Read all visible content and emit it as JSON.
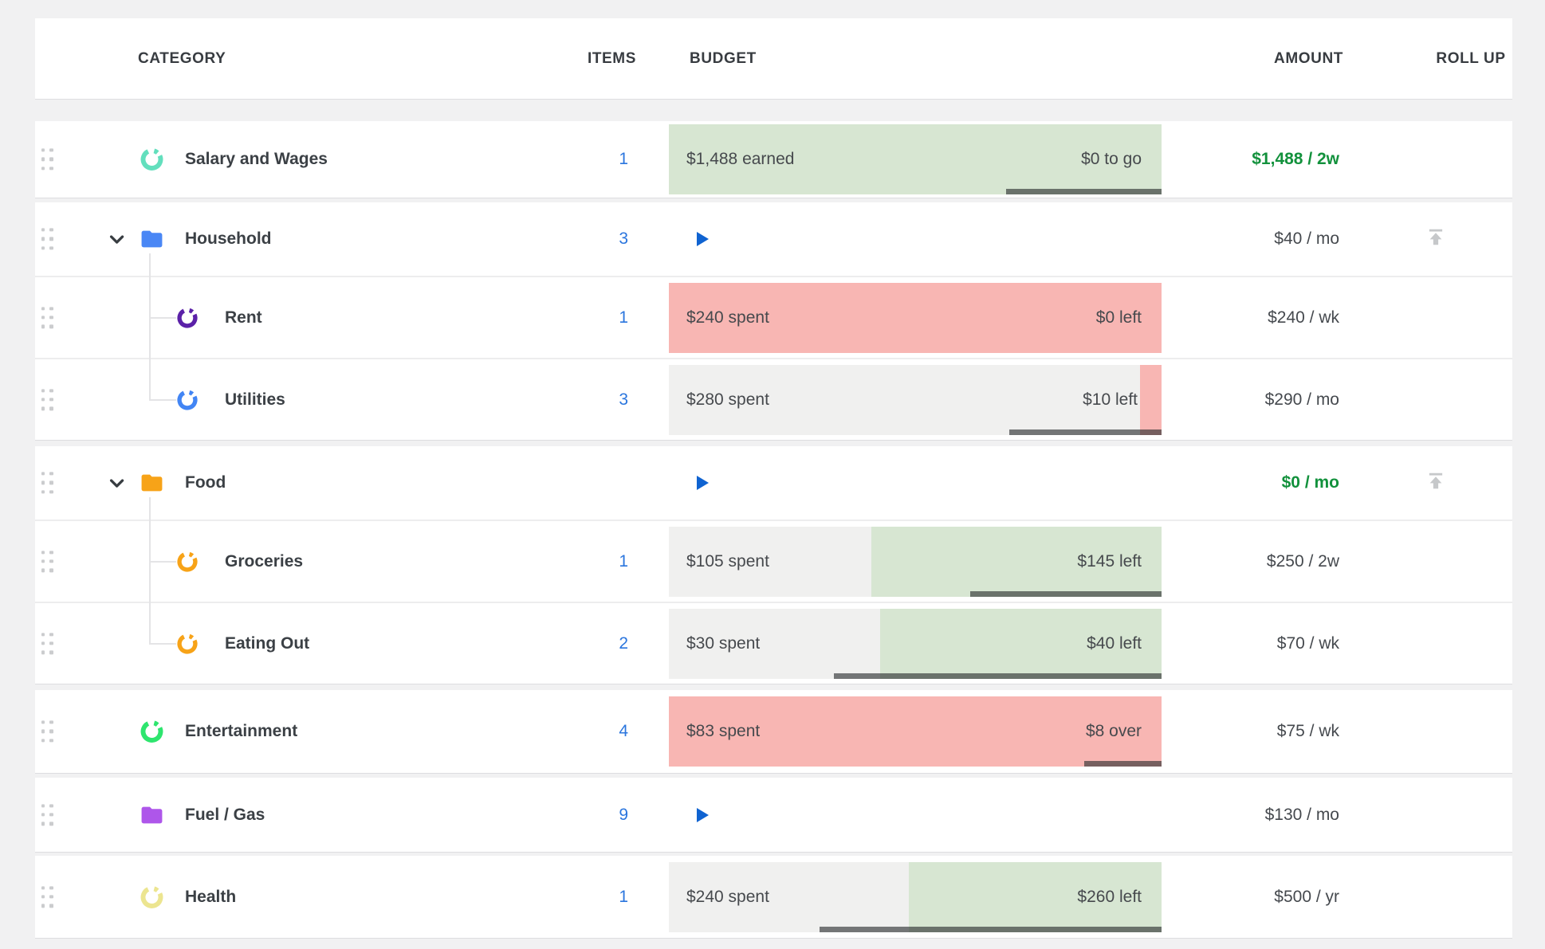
{
  "header": {
    "category": "CATEGORY",
    "items": "ITEMS",
    "budget": "BUDGET",
    "amount": "AMOUNT",
    "rollup": "ROLL UP"
  },
  "colors": {
    "bar_green": "#d7e6d2",
    "bar_red": "#f8b6b3",
    "bar_gray": "#f0f0ef",
    "link_blue": "#2b76de",
    "play_blue": "#0f63d1",
    "amount_green": "#12913c",
    "chevron": "#383d42",
    "rollup_gray": "#c6c8ca",
    "drag_gray": "#cbccce"
  },
  "cards": [
    {
      "id": "salary",
      "rows": [
        {
          "id": "salary",
          "name": "Salary and Wages",
          "icon": "donut-icon",
          "icon_color": "#63dfbd",
          "items": "1",
          "amount": "$1,488 / 2w",
          "amount_accent": true,
          "bar": {
            "left_label": "$1,488 earned",
            "right_label": "$0 to go",
            "segments": [
              {
                "color": "green",
                "frac": 1
              }
            ],
            "underline_start": 0.684
          }
        }
      ]
    },
    {
      "id": "household",
      "rows": [
        {
          "id": "household",
          "name": "Household",
          "icon": "folder-icon",
          "icon_color": "#4a87f5",
          "chevron": true,
          "tree": "down",
          "items": "3",
          "amount": "$40 / mo",
          "play": true,
          "rollup": true
        },
        {
          "id": "rent",
          "name": "Rent",
          "icon": "donut-icon",
          "icon_color": "#5b21a8",
          "child": true,
          "tree": "mid",
          "items": "1",
          "amount": "$240 / wk",
          "bar": {
            "left_label": "$240 spent",
            "right_label": "$0 left",
            "segments": [
              {
                "color": "red",
                "frac": 1
              }
            ],
            "underline_start": null
          }
        },
        {
          "id": "utilities",
          "name": "Utilities",
          "icon": "donut-icon",
          "icon_color": "#4285f4",
          "child": true,
          "tree": "last",
          "items": "3",
          "amount": "$290 / mo",
          "bar": {
            "left_label": "$280 spent",
            "right_label": "$10 left",
            "segments": [
              {
                "color": "gray",
                "frac": 0.956
              },
              {
                "color": "red",
                "frac": 0.044
              }
            ],
            "underline_start": 0.691
          }
        }
      ]
    },
    {
      "id": "food",
      "rows": [
        {
          "id": "food",
          "name": "Food",
          "icon": "folder-icon",
          "icon_color": "#f7a318",
          "chevron": true,
          "tree": "down",
          "items": "",
          "amount": "$0 / mo",
          "amount_accent": true,
          "play": true,
          "rollup": true
        },
        {
          "id": "groceries",
          "name": "Groceries",
          "icon": "donut-icon",
          "icon_color": "#f7a318",
          "child": true,
          "tree": "mid",
          "items": "1",
          "amount": "$250 / 2w",
          "bar": {
            "left_label": "$105 spent",
            "right_label": "$145 left",
            "segments": [
              {
                "color": "gray",
                "frac": 0.411
              },
              {
                "color": "green",
                "frac": 0.589
              }
            ],
            "underline_start": 0.611
          }
        },
        {
          "id": "eating-out",
          "name": "Eating Out",
          "icon": "donut-icon",
          "icon_color": "#f7a318",
          "child": true,
          "tree": "last",
          "items": "2",
          "amount": "$70 / wk",
          "bar": {
            "left_label": "$30 spent",
            "right_label": "$40 left",
            "segments": [
              {
                "color": "gray",
                "frac": 0.429
              },
              {
                "color": "green",
                "frac": 0.571
              }
            ],
            "underline_start": 0.335
          }
        }
      ]
    },
    {
      "id": "entertainment",
      "rows": [
        {
          "id": "entertainment",
          "name": "Entertainment",
          "icon": "donut-icon",
          "icon_color": "#2ee56e",
          "items": "4",
          "amount": "$75 / wk",
          "bar": {
            "left_label": "$83 spent",
            "right_label": "$8 over",
            "segments": [
              {
                "color": "red",
                "frac": 1
              }
            ],
            "underline_start": 0.843
          }
        }
      ]
    },
    {
      "id": "fuel-gas",
      "rows": [
        {
          "id": "fuel-gas",
          "name": "Fuel / Gas",
          "icon": "folder-icon",
          "icon_color": "#ae56ea",
          "items": "9",
          "amount": "$130 / mo",
          "play": true
        }
      ]
    },
    {
      "id": "health",
      "rows": [
        {
          "id": "health",
          "name": "Health",
          "icon": "donut-icon",
          "icon_color": "#ece590",
          "items": "1",
          "amount": "$500 / yr",
          "bar": {
            "left_label": "$240 spent",
            "right_label": "$260 left",
            "segments": [
              {
                "color": "gray",
                "frac": 0.487
              },
              {
                "color": "green",
                "frac": 0.513
              }
            ],
            "underline_start": 0.306
          }
        }
      ]
    }
  ]
}
